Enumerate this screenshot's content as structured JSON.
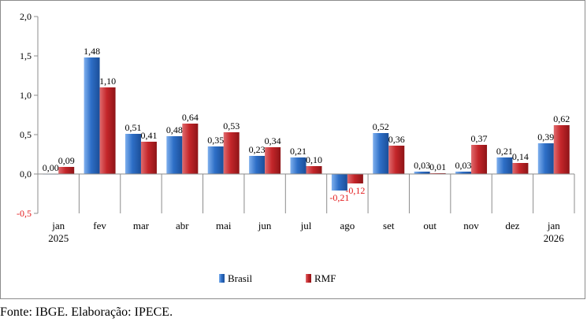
{
  "chart_data": {
    "type": "bar",
    "title": "",
    "xlabel": "",
    "ylabel": "",
    "categories": [
      [
        "jan",
        "2025"
      ],
      [
        "fev"
      ],
      [
        "mar"
      ],
      [
        "abr"
      ],
      [
        "mai"
      ],
      [
        "jun"
      ],
      [
        "jul"
      ],
      [
        "ago"
      ],
      [
        "set"
      ],
      [
        "out"
      ],
      [
        "nov"
      ],
      [
        "dez"
      ],
      [
        "jan",
        "2026"
      ]
    ],
    "series": [
      {
        "name": "Brasil",
        "color": "#2e6fc7",
        "values": [
          0.0,
          1.48,
          0.51,
          0.48,
          0.35,
          0.23,
          0.21,
          -0.21,
          0.52,
          0.03,
          0.03,
          0.21,
          0.39
        ],
        "labels": [
          "0,00",
          "1,48",
          "0,51",
          "0,48",
          "0,35",
          "0,23",
          "0,21",
          "-0,21",
          "0,52",
          "0,03",
          "0,03",
          "0,21",
          "0,39"
        ]
      },
      {
        "name": "RMF",
        "color": "#c4262a",
        "values": [
          0.09,
          1.1,
          0.41,
          0.64,
          0.53,
          0.34,
          0.1,
          -0.12,
          0.36,
          0.01,
          0.37,
          0.14,
          0.62
        ],
        "labels": [
          "0,09",
          "1,10",
          "0,41",
          "0,64",
          "0,53",
          "0,34",
          "0,10",
          "-0,12",
          "0,36",
          "0,01",
          "0,37",
          "0,14",
          "0,62"
        ]
      }
    ],
    "ylim": [
      -0.5,
      2.0
    ],
    "yticks": [
      2.0,
      1.5,
      1.0,
      0.5,
      0.0,
      -0.5
    ],
    "ytick_labels": [
      "2,0",
      "1,5",
      "1,0",
      "0,5",
      "0,0",
      "-0,5"
    ],
    "negative_label_color": "#e31a1c",
    "grid": false,
    "legend_position": "bottom-center"
  },
  "source_note": "Fonte: IBGE. Elaboração: IPECE."
}
